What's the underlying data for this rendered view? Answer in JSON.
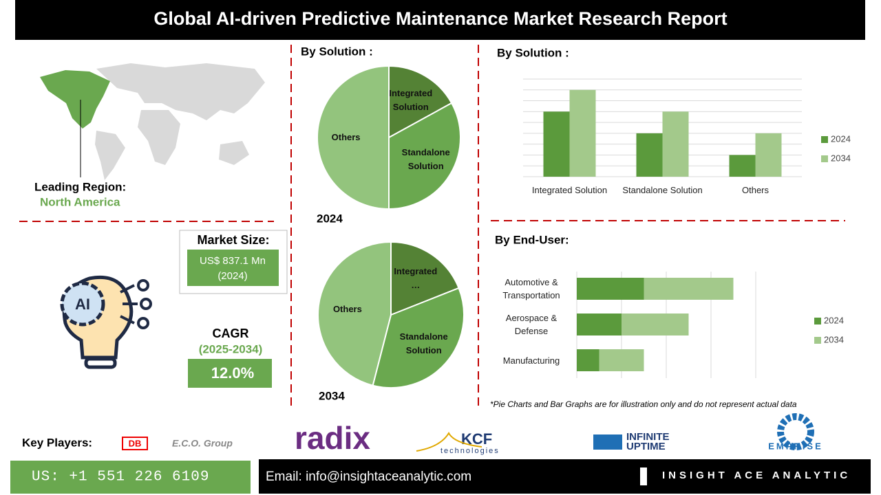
{
  "header": {
    "title": "Global AI-driven Predictive Maintenance Market  Research Report"
  },
  "region": {
    "label": "Leading Region:",
    "value": "North America"
  },
  "market_size": {
    "label": "Market Size:",
    "value": "US$ 837.1 Mn",
    "year": "(2024)"
  },
  "icon_text": "AI",
  "cagr": {
    "label": "CAGR",
    "period": "(2025-2034)",
    "value": "12.0%"
  },
  "chart_data": [
    {
      "type": "pie",
      "title": "By Solution :",
      "subtitle": "2024",
      "categories": [
        "Integrated Solution",
        "Standalone Solution",
        "Others"
      ],
      "values": [
        17,
        33,
        50
      ],
      "colors": [
        "#548235",
        "#6aa84f",
        "#93c47d"
      ]
    },
    {
      "type": "pie",
      "subtitle": "2034",
      "categories": [
        "Integrated…",
        "Standalone Solution",
        "Others"
      ],
      "values": [
        19,
        35,
        46
      ],
      "colors": [
        "#548235",
        "#6aa84f",
        "#93c47d"
      ]
    },
    {
      "type": "bar",
      "title": "By  Solution :",
      "categories": [
        "Integrated Solution",
        "Standalone Solution",
        "Others"
      ],
      "series": [
        {
          "name": "2024",
          "color": "#5b9a3c",
          "values": [
            6,
            4,
            2
          ]
        },
        {
          "name": "2034",
          "color": "#a3c98b",
          "values": [
            8,
            6,
            4
          ]
        }
      ],
      "ylim": [
        0,
        9
      ],
      "yticks": [
        0,
        1,
        2,
        3,
        4,
        5,
        6,
        7,
        8,
        9
      ],
      "grid": true,
      "legend": "right"
    },
    {
      "type": "hbar",
      "stacked": true,
      "title": "By End-User:",
      "categories": [
        "Automotive & Transportation",
        "Aerospace & Defense",
        "Manufacturing"
      ],
      "series": [
        {
          "name": "2024",
          "color": "#5b9a3c",
          "values": [
            1.5,
            1,
            0.5
          ]
        },
        {
          "name": "2034",
          "color": "#a3c98b",
          "values": [
            2,
            1.5,
            1
          ]
        }
      ],
      "xlim": [
        0,
        4
      ],
      "xticks": [
        0,
        1,
        2,
        3,
        4
      ],
      "grid": true,
      "legend": "right"
    }
  ],
  "note": "*Pie Charts and Bar Graphs are for illustration only and do not represent actual data",
  "key_players": {
    "label": "Key Players:",
    "names": [
      "DB",
      "E.C.O. Group",
      "radix",
      "KCF",
      "technologies",
      "INFINITE",
      "UPTIME",
      "EMPRISE"
    ]
  },
  "footer": {
    "phone": "US: +1 551 226 6109",
    "email": "Email: info@insightaceanalytic.com",
    "brand": "INSIGHT ACE ANALYTIC"
  }
}
